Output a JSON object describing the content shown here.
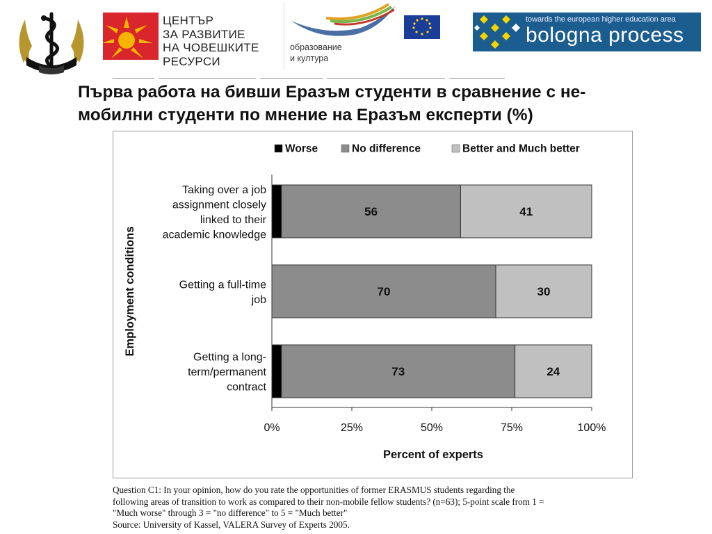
{
  "header": {
    "hrdc_logo": {
      "lines": [
        "ЦЕНТЪР",
        "ЗА РАЗВИТИЕ",
        "НА ЧОВЕШКИТЕ",
        "РЕСУРСИ"
      ]
    },
    "llp_logo": {
      "lines": [
        "образование",
        "и култура"
      ]
    },
    "bologna_logo": {
      "tagline": "towards the european higher education area",
      "name": "bologna process"
    },
    "colors": {
      "bologna_bg": "#1b5d8f",
      "hrdc_red": "#d8262c",
      "hrdc_sun": "#f5b400"
    }
  },
  "slide": {
    "title_lines": [
      "Първа работа на бивши Еразъм студенти в сравнение с не-",
      "мобилни студенти по мнение на Еразъм експерти  (%)"
    ]
  },
  "chart_data": {
    "type": "bar",
    "orientation": "horizontal",
    "stacked": true,
    "categories": [
      [
        "Taking over a job",
        "assignment closely",
        "linked to their",
        "academic knowledge"
      ],
      [
        "Getting a full-time",
        "job"
      ],
      [
        "Getting a long-",
        "term/permanent",
        "contract"
      ]
    ],
    "series": [
      {
        "name": "Worse",
        "values": [
          3,
          0,
          3
        ],
        "color": "#000000",
        "labels": [
          "",
          "",
          ""
        ]
      },
      {
        "name": "No difference",
        "values": [
          56,
          70,
          73
        ],
        "color": "#8c8c8c",
        "labels": [
          "56",
          "70",
          "73"
        ]
      },
      {
        "name": "Better and Much better",
        "values": [
          41,
          30,
          24
        ],
        "color": "#c0c0c0",
        "labels": [
          "41",
          "30",
          "24"
        ]
      }
    ],
    "xlabel": "Percent of experts",
    "ylabel": "Employment conditions",
    "xlim": [
      0,
      100
    ],
    "xticks": [
      "0%",
      "25%",
      "50%",
      "75%",
      "100%"
    ],
    "legend_position": "top",
    "grid": false
  },
  "footnote": {
    "lines": [
      "Question C1: In your opinion, how do you rate the opportunities of former ERASMUS students regarding the",
      "following areas of transition to work as compared to their non-mobile fellow students? (n=63); 5-point scale from 1 =",
      "\"Much worse\" through 3 = \"no difference\" to 5 = \"Much better\"",
      "Source: University of Kassel, VALERA Survey of Experts 2005."
    ]
  }
}
